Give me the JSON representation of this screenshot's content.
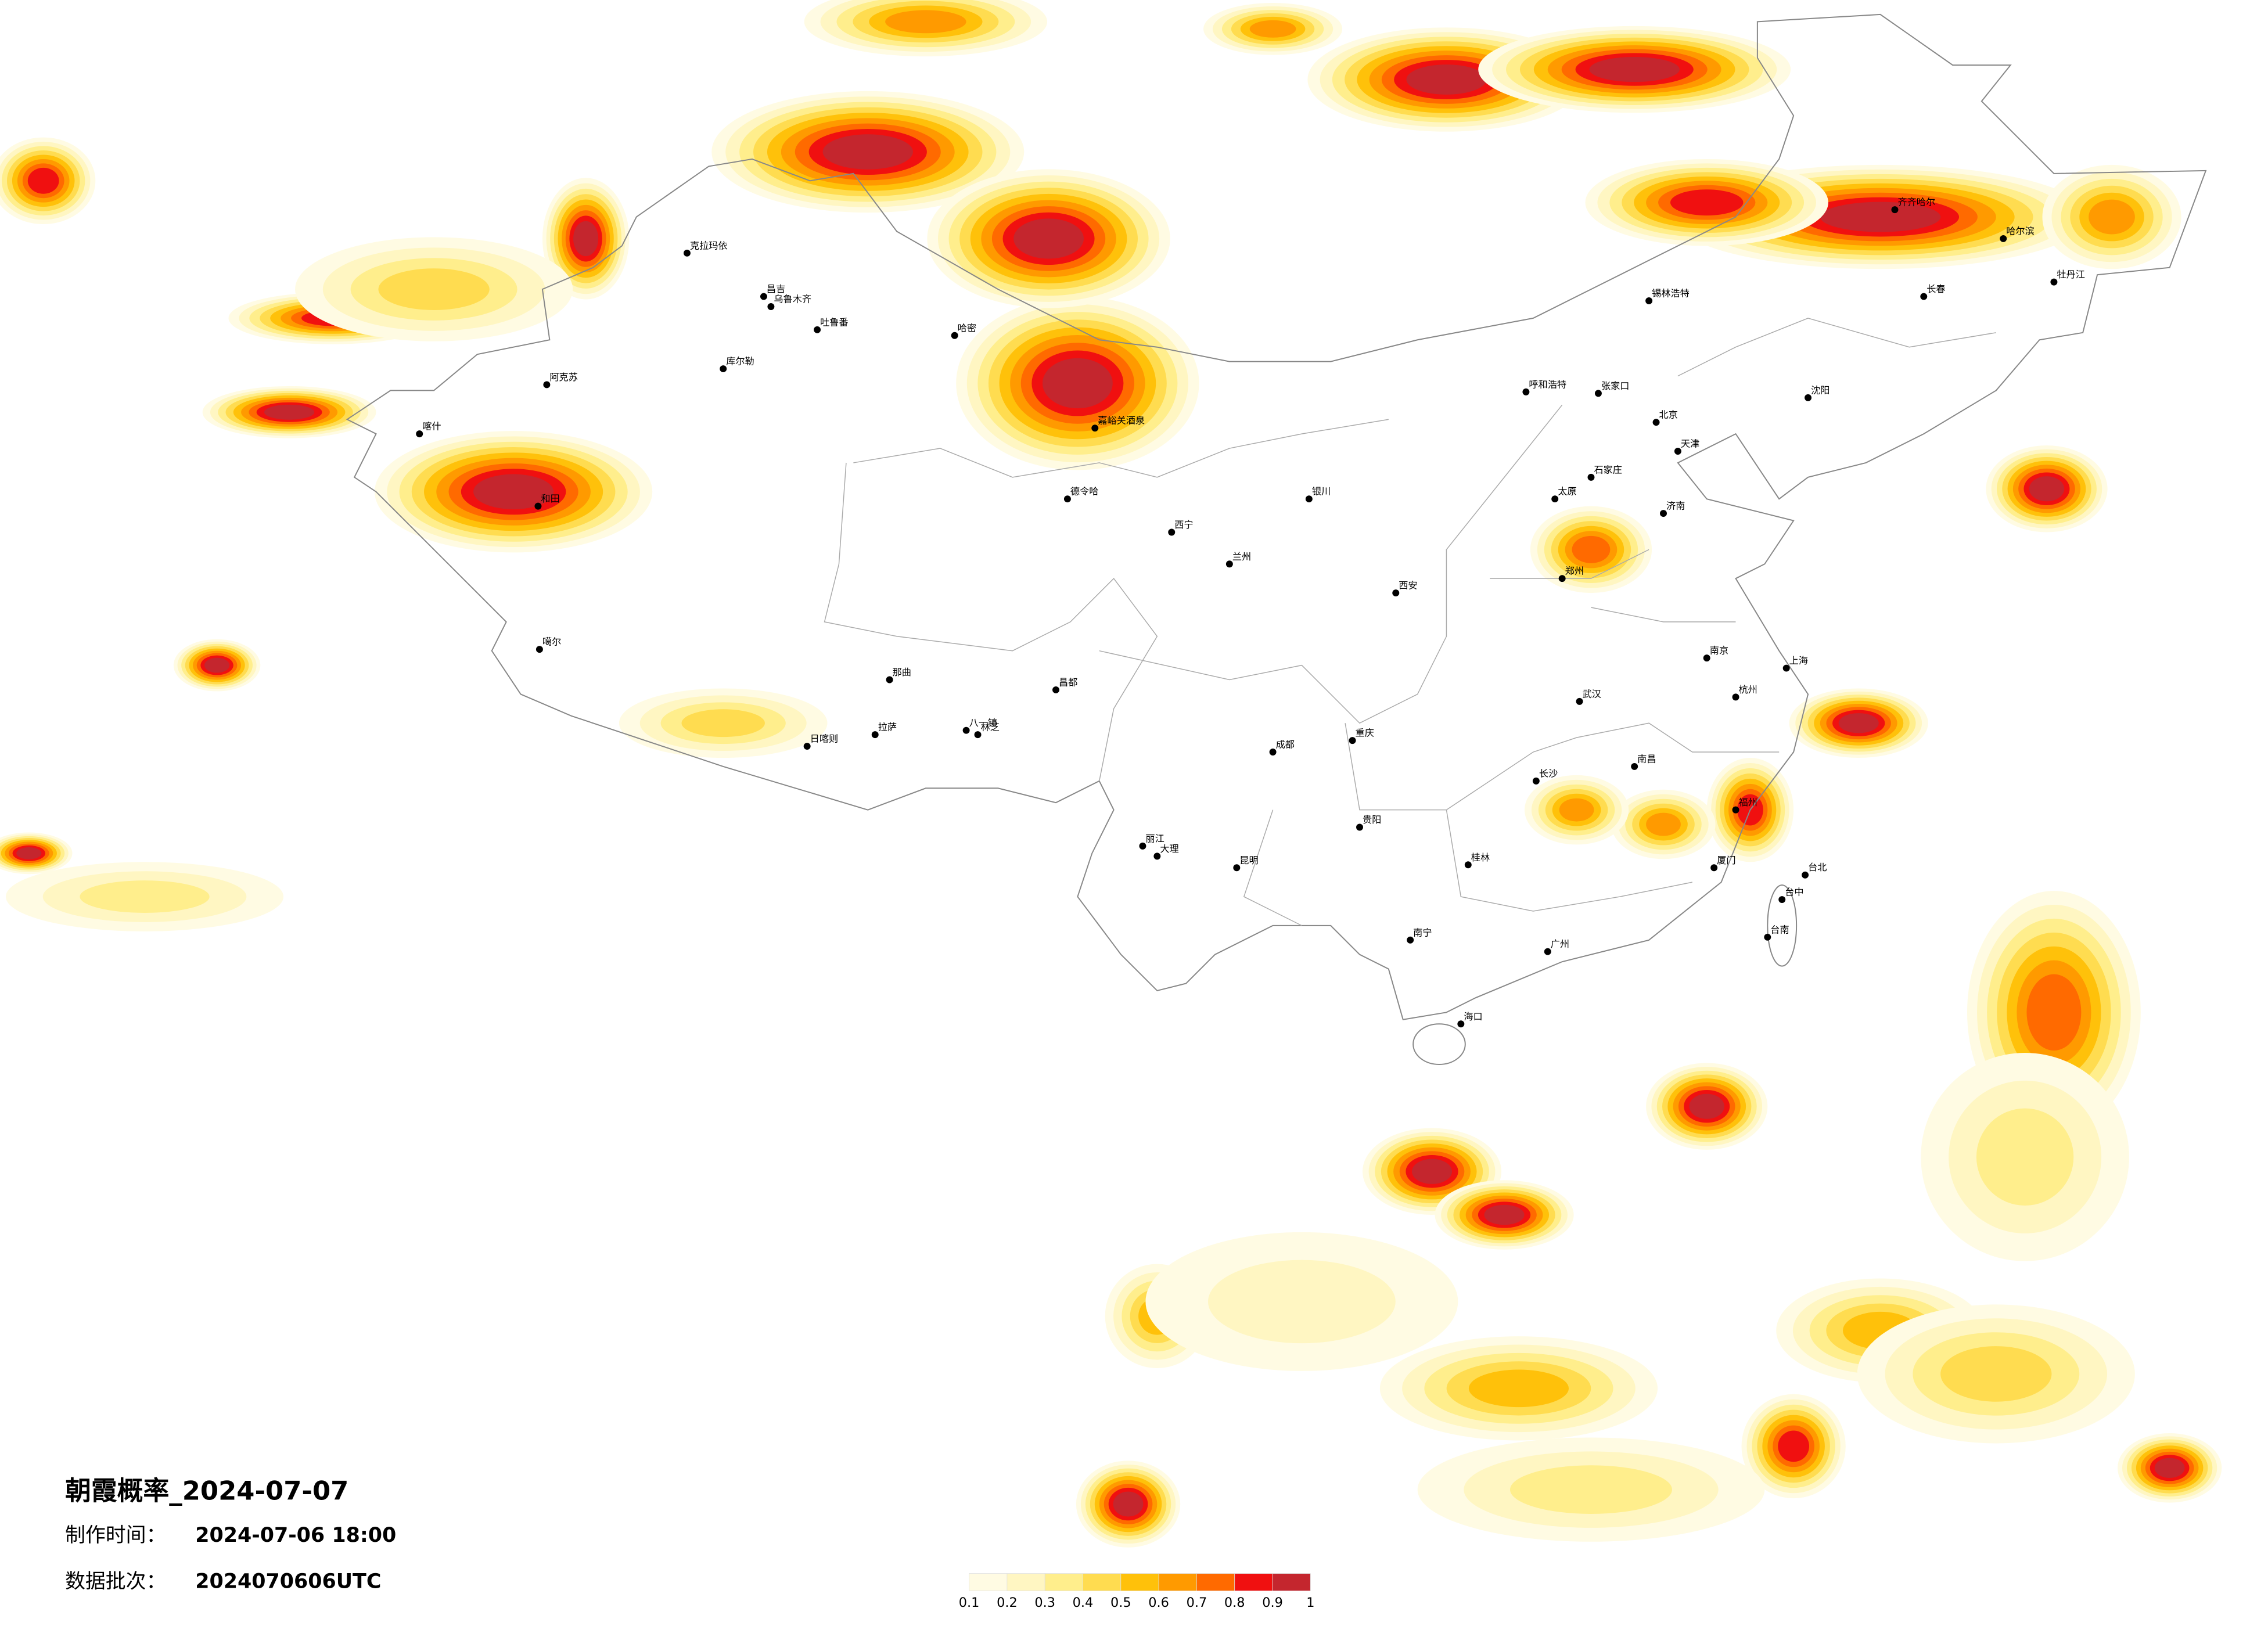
{
  "title": "朝霞概率_2024-07-07",
  "production_time": {
    "label": "制作时间：",
    "value": "2024-07-06 18:00"
  },
  "data_batch": {
    "label": "数据批次：",
    "value": "2024070606UTC"
  },
  "colorbar": {
    "ticks": [
      0.1,
      0.2,
      0.3,
      0.4,
      0.5,
      0.6,
      0.7,
      0.8,
      0.9,
      1
    ],
    "colors": [
      "#fffbe3",
      "#fff6c2",
      "#ffee8c",
      "#ffdc50",
      "#ffc10a",
      "#ff9a00",
      "#ff6a00",
      "#f01010",
      "#c4262e"
    ]
  },
  "cities": [
    "克拉玛依",
    "昌吉",
    "乌鲁木齐",
    "吐鲁番",
    "哈密",
    "库尔勒",
    "阿克苏",
    "喀什",
    "和田",
    "噶尔",
    "那曲",
    "日喀则",
    "拉萨",
    "八一镇",
    "林芝",
    "昌都",
    "德令哈",
    "嘉峪关酒泉",
    "西宁",
    "兰州",
    "银川",
    "呼和浩特",
    "张家口",
    "北京",
    "天津",
    "石家庄",
    "太原",
    "济南",
    "郑州",
    "西安",
    "武汉",
    "南京",
    "上海",
    "杭州",
    "南昌",
    "长沙",
    "重庆",
    "成都",
    "贵阳",
    "昆明",
    "南宁",
    "广州",
    "海口",
    "台北",
    "台中",
    "台南",
    "沈阳",
    "长春",
    "哈尔滨",
    "齐齐哈尔",
    "锡林浩特",
    "牡丹江",
    "丽江",
    "大理",
    "桂林",
    "福州",
    "厦门"
  ]
}
